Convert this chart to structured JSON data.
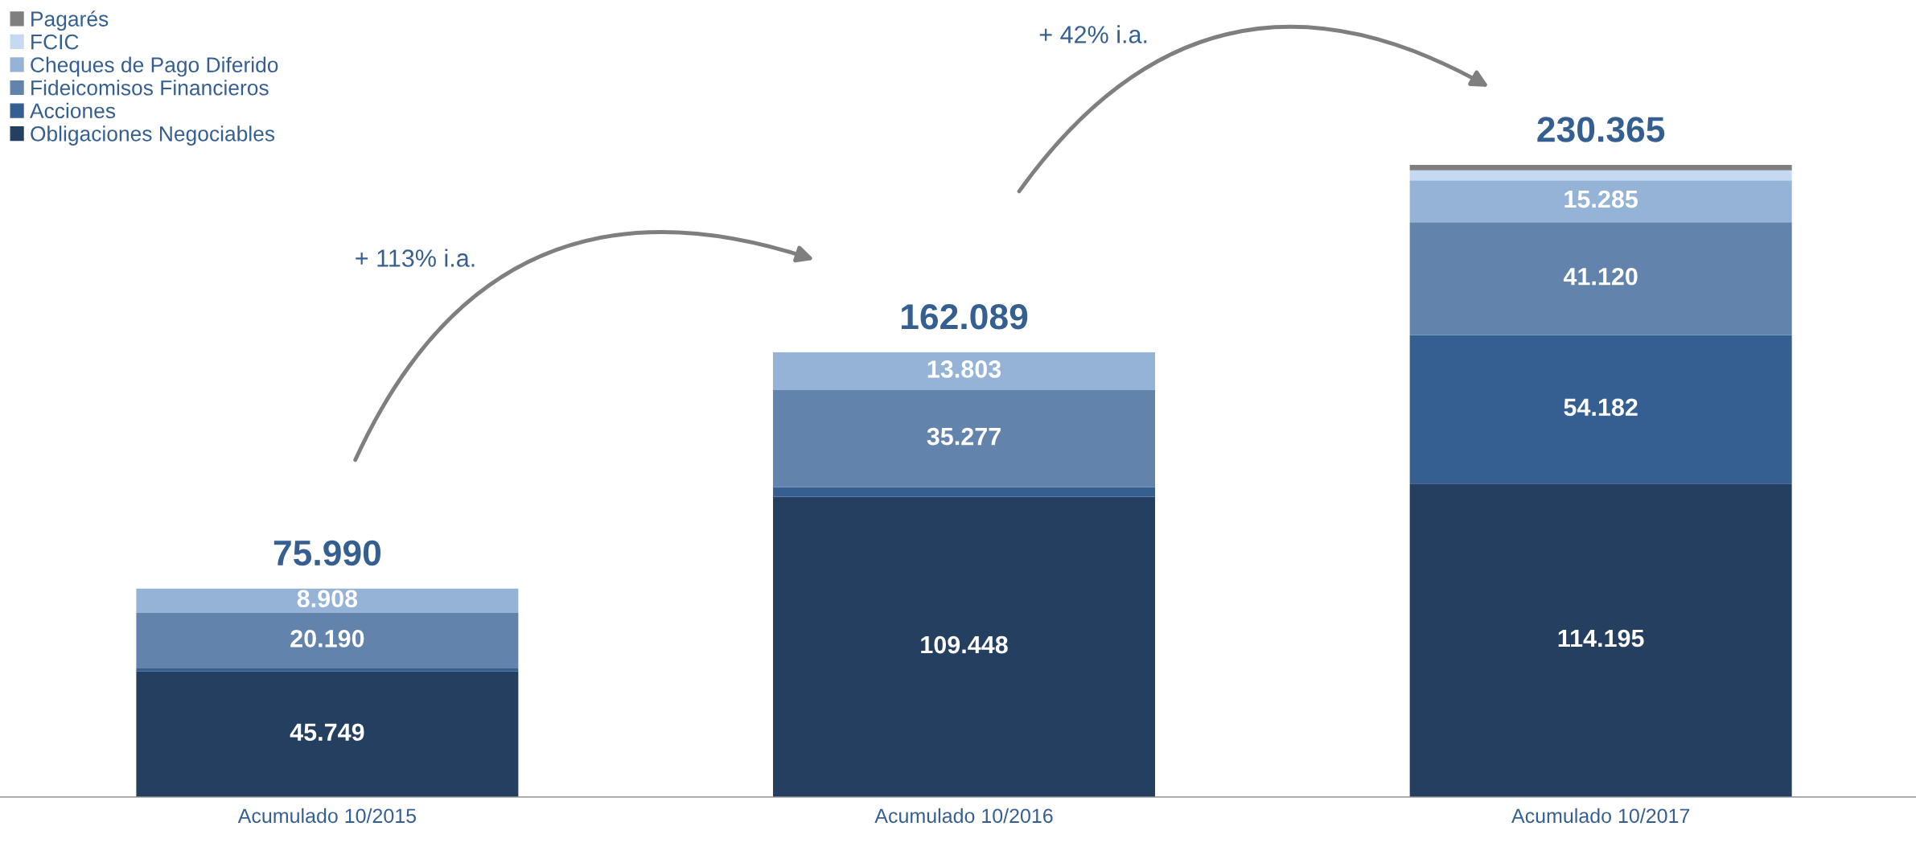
{
  "chart_data": {
    "type": "bar",
    "stacked": true,
    "categories": [
      "Acumulado 10/2015",
      "Acumulado 10/2016",
      "Acumulado 10/2017"
    ],
    "series": [
      {
        "name": "Obligaciones Negociables",
        "color": "#253f60",
        "values": [
          45749,
          109448,
          114195
        ],
        "value_labels": [
          "45.749",
          "109.448",
          "114.195"
        ]
      },
      {
        "name": "Acciones",
        "color": "#355f91",
        "values": [
          1143,
          3561,
          54182
        ],
        "value_labels": [
          null,
          null,
          "54.182"
        ]
      },
      {
        "name": "Fideicomisos Financieros",
        "color": "#6283ab",
        "values": [
          20190,
          35277,
          41120
        ],
        "value_labels": [
          "20.190",
          "35.277",
          "41.120"
        ]
      },
      {
        "name": "Cheques de Pago Diferido",
        "color": "#95b3d7",
        "values": [
          8908,
          13803,
          15285
        ],
        "value_labels": [
          "8.908",
          "13.803",
          "15.285"
        ]
      },
      {
        "name": "FCIC",
        "color": "#c5d9f1",
        "values": [
          0,
          0,
          3600
        ],
        "value_labels": [
          null,
          null,
          null
        ]
      },
      {
        "name": "Pagarés",
        "color": "#7f7f7f",
        "values": [
          0,
          0,
          1983
        ],
        "value_labels": [
          null,
          null,
          null
        ]
      }
    ],
    "totals": [
      "75.990",
      "162.089",
      "230.365"
    ],
    "annotations": [
      "+ 113% i.a.",
      "+ 42% i.a."
    ],
    "legend": "top left",
    "grid": false
  }
}
